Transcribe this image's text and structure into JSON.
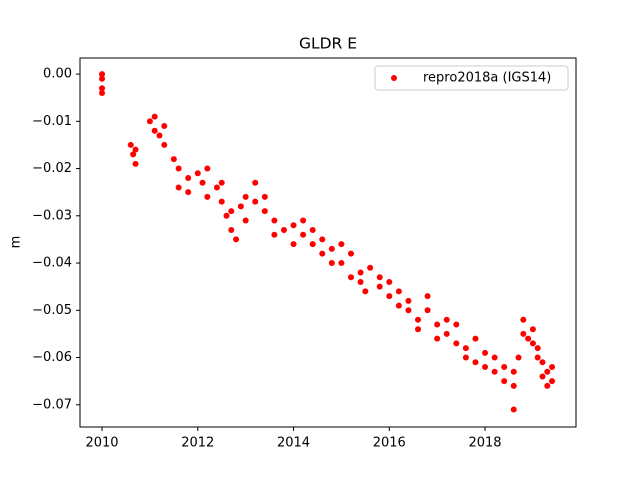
{
  "chart_data": {
    "type": "scatter",
    "title": "GLDR E",
    "y_label": "m",
    "xlim": [
      2009.54,
      2019.9
    ],
    "ylim": [
      -0.0747,
      0.0034
    ],
    "xticks": [
      2010,
      2012,
      2014,
      2016,
      2018
    ],
    "yticks": [
      {
        "value": 0,
        "label": "0.00"
      },
      {
        "value": -0.01,
        "label": "−0.01"
      },
      {
        "value": -0.02,
        "label": "−0.02"
      },
      {
        "value": -0.03,
        "label": "−0.03"
      },
      {
        "value": -0.04,
        "label": "−0.04"
      },
      {
        "value": -0.05,
        "label": "−0.05"
      },
      {
        "value": -0.06,
        "label": "−0.06"
      },
      {
        "value": -0.07,
        "label": "−0.07"
      }
    ],
    "legend": "upper right",
    "series": [
      {
        "name": "repro2018a (IGS14)",
        "color": "#ff0000",
        "x": [
          2010.0,
          2010.0,
          2010.0,
          2010.0,
          2010.6,
          2010.65,
          2010.7,
          2010.7,
          2011.0,
          2011.1,
          2011.1,
          2011.2,
          2011.3,
          2011.3,
          2011.5,
          2011.6,
          2011.6,
          2011.8,
          2011.8,
          2012.0,
          2012.1,
          2012.2,
          2012.2,
          2012.4,
          2012.5,
          2012.5,
          2012.6,
          2012.7,
          2012.7,
          2012.8,
          2012.9,
          2013.0,
          2013.0,
          2013.2,
          2013.2,
          2013.4,
          2013.4,
          2013.6,
          2013.6,
          2013.8,
          2014.0,
          2014.0,
          2014.2,
          2014.2,
          2014.4,
          2014.4,
          2014.6,
          2014.6,
          2014.8,
          2014.8,
          2015.0,
          2015.0,
          2015.2,
          2015.2,
          2015.4,
          2015.4,
          2015.5,
          2015.6,
          2015.8,
          2015.8,
          2016.0,
          2016.0,
          2016.2,
          2016.2,
          2016.4,
          2016.4,
          2016.6,
          2016.6,
          2016.8,
          2016.8,
          2017.0,
          2017.0,
          2017.2,
          2017.2,
          2017.4,
          2017.4,
          2017.6,
          2017.6,
          2017.8,
          2017.8,
          2018.0,
          2018.0,
          2018.2,
          2018.2,
          2018.4,
          2018.4,
          2018.6,
          2018.6,
          2018.6,
          2018.7,
          2018.8,
          2018.8,
          2018.9,
          2019.0,
          2019.0,
          2019.1,
          2019.1,
          2019.2,
          2019.2,
          2019.3,
          2019.3,
          2019.4,
          2019.4
        ],
        "values": [
          0.0,
          -0.001,
          -0.003,
          -0.004,
          -0.015,
          -0.017,
          -0.019,
          -0.016,
          -0.01,
          -0.009,
          -0.012,
          -0.013,
          -0.015,
          -0.011,
          -0.018,
          -0.02,
          -0.024,
          -0.022,
          -0.025,
          -0.021,
          -0.023,
          -0.02,
          -0.026,
          -0.024,
          -0.027,
          -0.023,
          -0.03,
          -0.029,
          -0.033,
          -0.035,
          -0.028,
          -0.026,
          -0.031,
          -0.027,
          -0.023,
          -0.029,
          -0.026,
          -0.031,
          -0.034,
          -0.033,
          -0.032,
          -0.036,
          -0.034,
          -0.031,
          -0.036,
          -0.033,
          -0.035,
          -0.038,
          -0.04,
          -0.037,
          -0.036,
          -0.04,
          -0.038,
          -0.043,
          -0.042,
          -0.044,
          -0.046,
          -0.041,
          -0.045,
          -0.043,
          -0.044,
          -0.047,
          -0.046,
          -0.049,
          -0.05,
          -0.048,
          -0.052,
          -0.054,
          -0.05,
          -0.047,
          -0.053,
          -0.056,
          -0.052,
          -0.055,
          -0.057,
          -0.053,
          -0.06,
          -0.058,
          -0.061,
          -0.056,
          -0.059,
          -0.062,
          -0.06,
          -0.063,
          -0.062,
          -0.065,
          -0.066,
          -0.071,
          -0.063,
          -0.06,
          -0.052,
          -0.055,
          -0.056,
          -0.057,
          -0.054,
          -0.058,
          -0.06,
          -0.061,
          -0.064,
          -0.063,
          -0.066,
          -0.062,
          -0.065
        ]
      }
    ]
  }
}
